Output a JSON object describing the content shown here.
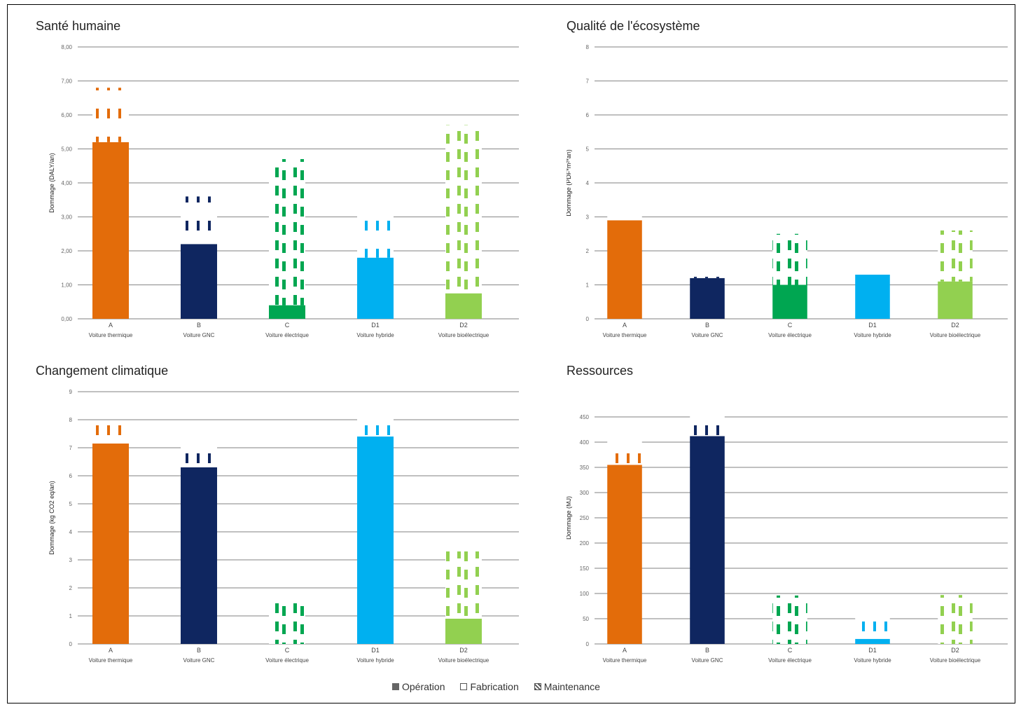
{
  "colors": {
    "A": "#e36c0a",
    "B": "#0f2660",
    "C": "#00a651",
    "D1": "#00b0f0",
    "D2": "#92d050",
    "grid": "#9a9a9a"
  },
  "legend": {
    "operation": "Opération",
    "fabrication": "Fabrication",
    "maintenance": "Maintenance"
  },
  "chart_data": [
    {
      "type": "bar",
      "stacked": true,
      "title": "Santé humaine",
      "ylabel": "Dommage (DALY/an)",
      "ylim": [
        0,
        8
      ],
      "yticks": [
        "0,00",
        "1,00",
        "2,00",
        "3,00",
        "4,00",
        "5,00",
        "6,00",
        "7,00",
        "8,00"
      ],
      "categories": [
        {
          "code": "A",
          "name": "Voiture thermique",
          "color": "A"
        },
        {
          "code": "B",
          "name": "Voiture GNC",
          "color": "B"
        },
        {
          "code": "C",
          "name": "Voiture électrique",
          "color": "C"
        },
        {
          "code": "D1",
          "name": "Voiture hybride",
          "color": "D1"
        },
        {
          "code": "D2",
          "name": "Voiture bioélectrique",
          "color": "D2"
        }
      ],
      "series": [
        {
          "name": "Opération",
          "values": [
            5.2,
            2.2,
            0.4,
            1.8,
            0.75
          ]
        },
        {
          "name": "Fabrication",
          "values": [
            1.6,
            1.4,
            0.0,
            1.6,
            0.0
          ]
        },
        {
          "name": "Maintenance",
          "values": [
            0.0,
            0.0,
            4.3,
            0.0,
            4.95
          ]
        }
      ]
    },
    {
      "type": "bar",
      "stacked": true,
      "title": "Qualité de l'écosystème",
      "ylabel": "Dommage (PDF*m²*an)",
      "ylim": [
        0,
        8
      ],
      "yticks": [
        "0",
        "1",
        "2",
        "3",
        "4",
        "5",
        "6",
        "7",
        "8"
      ],
      "categories": [
        {
          "code": "A",
          "name": "Voiture thermique",
          "color": "A"
        },
        {
          "code": "B",
          "name": "Voiture GNC",
          "color": "B"
        },
        {
          "code": "C",
          "name": "Voiture électrique",
          "color": "C"
        },
        {
          "code": "D1",
          "name": "Voiture hybride",
          "color": "D1"
        },
        {
          "code": "D2",
          "name": "Voiture bioélectrique",
          "color": "D2"
        }
      ],
      "series": [
        {
          "name": "Opération",
          "values": [
            2.9,
            1.2,
            1.0,
            1.3,
            1.1
          ]
        },
        {
          "name": "Fabrication",
          "values": [
            0.3,
            0.35,
            0.0,
            0.4,
            0.0
          ]
        },
        {
          "name": "Maintenance",
          "values": [
            0.0,
            0.0,
            1.5,
            0.0,
            1.5
          ]
        }
      ]
    },
    {
      "type": "bar",
      "stacked": true,
      "title": "Changement climatique",
      "ylabel": "Dommage (kg CO2 eq/an)",
      "ylim": [
        0,
        9
      ],
      "yticks": [
        "0",
        "1",
        "2",
        "3",
        "4",
        "5",
        "6",
        "7",
        "8",
        "9"
      ],
      "categories": [
        {
          "code": "A",
          "name": "Voiture thermique",
          "color": "A"
        },
        {
          "code": "B",
          "name": "Voiture GNC",
          "color": "B"
        },
        {
          "code": "C",
          "name": "Voiture électrique",
          "color": "C"
        },
        {
          "code": "D1",
          "name": "Voiture hybride",
          "color": "D1"
        },
        {
          "code": "D2",
          "name": "Voiture bioélectrique",
          "color": "D2"
        }
      ],
      "series": [
        {
          "name": "Opération",
          "values": [
            7.15,
            6.3,
            0.0,
            7.4,
            0.9
          ]
        },
        {
          "name": "Fabrication",
          "values": [
            0.8,
            0.85,
            0.0,
            0.85,
            0.0
          ]
        },
        {
          "name": "Maintenance",
          "values": [
            0.0,
            0.0,
            1.6,
            0.0,
            2.4
          ]
        }
      ]
    },
    {
      "type": "bar",
      "stacked": true,
      "title": "Ressources",
      "ylabel": "Dommage (MJ)",
      "ylim": [
        0,
        500
      ],
      "yticks": [
        "0",
        "50",
        "100",
        "150",
        "200",
        "250",
        "300",
        "350",
        "400",
        "450"
      ],
      "categories": [
        {
          "code": "A",
          "name": "Voiture thermique",
          "color": "A"
        },
        {
          "code": "B",
          "name": "Voiture GNC",
          "color": "B"
        },
        {
          "code": "C",
          "name": "Voiture électrique",
          "color": "C"
        },
        {
          "code": "D1",
          "name": "Voiture hybride",
          "color": "D1"
        },
        {
          "code": "D2",
          "name": "Voiture bioélectrique",
          "color": "D2"
        }
      ],
      "series": [
        {
          "name": "Opération",
          "values": [
            355,
            412,
            0,
            10,
            0
          ]
        },
        {
          "name": "Fabrication",
          "values": [
            52,
            53,
            0,
            52,
            0
          ]
        },
        {
          "name": "Maintenance",
          "values": [
            0,
            0,
            96,
            0,
            97
          ]
        }
      ]
    }
  ]
}
